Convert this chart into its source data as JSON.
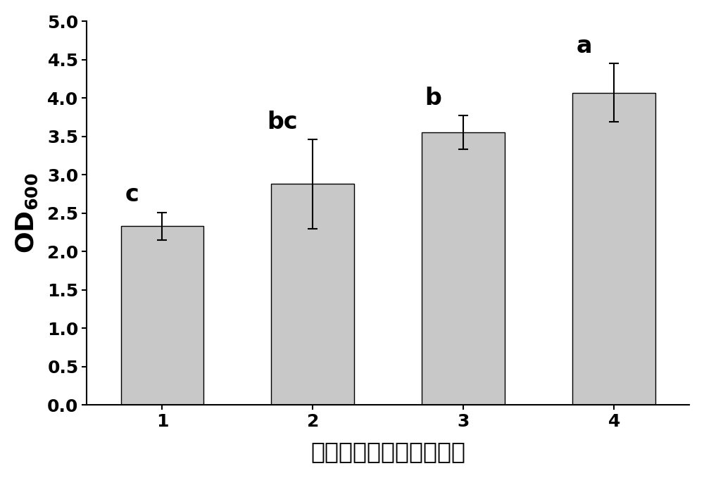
{
  "categories": [
    "1",
    "2",
    "3",
    "4"
  ],
  "values": [
    2.33,
    2.88,
    3.55,
    4.07
  ],
  "errors": [
    0.18,
    0.58,
    0.22,
    0.38
  ],
  "sig_labels": [
    "c",
    "bc",
    "b",
    "a"
  ],
  "bar_color": "#c8c8c8",
  "bar_edgecolor": "#000000",
  "bar_width": 0.55,
  "ylim": [
    0,
    5
  ],
  "yticks": [
    0,
    0.5,
    1.0,
    1.5,
    2.0,
    2.5,
    3.0,
    3.5,
    4.0,
    4.5,
    5.0
  ],
  "xlabel": "芽孢杆菌多样性（种类）",
  "xlabel_fontsize": 24,
  "ylabel_fontsize": 26,
  "tick_fontsize": 18,
  "sig_fontsize": 24,
  "error_capsize": 5,
  "error_linewidth": 1.5
}
